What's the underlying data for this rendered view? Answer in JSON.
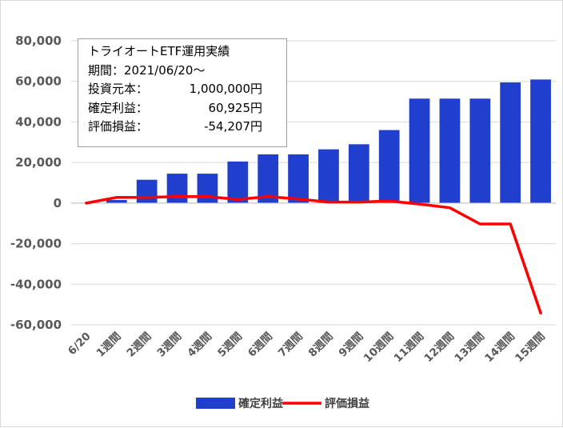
{
  "chart_data": {
    "type": "bar",
    "categories": [
      "6/20",
      "1週間",
      "2週間",
      "3週間",
      "4週間",
      "5週間",
      "6週間",
      "7週間",
      "8週間",
      "9週間",
      "10週間",
      "11週間",
      "12週間",
      "13週間",
      "14週間",
      "15週間"
    ],
    "series": [
      {
        "name": "確定利益",
        "type": "bar",
        "color": "#1f3fcc",
        "values": [
          0,
          1500,
          11500,
          14500,
          14500,
          20500,
          24000,
          24000,
          26500,
          29000,
          36000,
          51500,
          51500,
          51500,
          59500,
          60925
        ]
      },
      {
        "name": "評価損益",
        "type": "line",
        "color": "#ff0000",
        "values": [
          0,
          2800,
          2800,
          3200,
          3200,
          1800,
          3200,
          2000,
          500,
          500,
          1000,
          -500,
          -2300,
          -10300,
          -10300,
          -54207
        ]
      }
    ],
    "ylim": [
      -60000,
      80000
    ],
    "yticks": [
      80000,
      60000,
      40000,
      20000,
      0,
      -20000,
      -40000,
      -60000
    ],
    "ytick_labels": [
      "80,000",
      "60,000",
      "40,000",
      "20,000",
      "0",
      "-20,000",
      "-40,000",
      "-60,000"
    ],
    "grid": true,
    "legend_position": "bottom",
    "annotation": {
      "title": "トライオートETF運用実績",
      "period": "期間：2021/06/20～",
      "rows": [
        {
          "label": "投資元本：",
          "value": "1,000,000円"
        },
        {
          "label": "確定利益：",
          "value": "60,925円"
        },
        {
          "label": "評価損益：",
          "value": "-54,207円"
        }
      ]
    }
  }
}
